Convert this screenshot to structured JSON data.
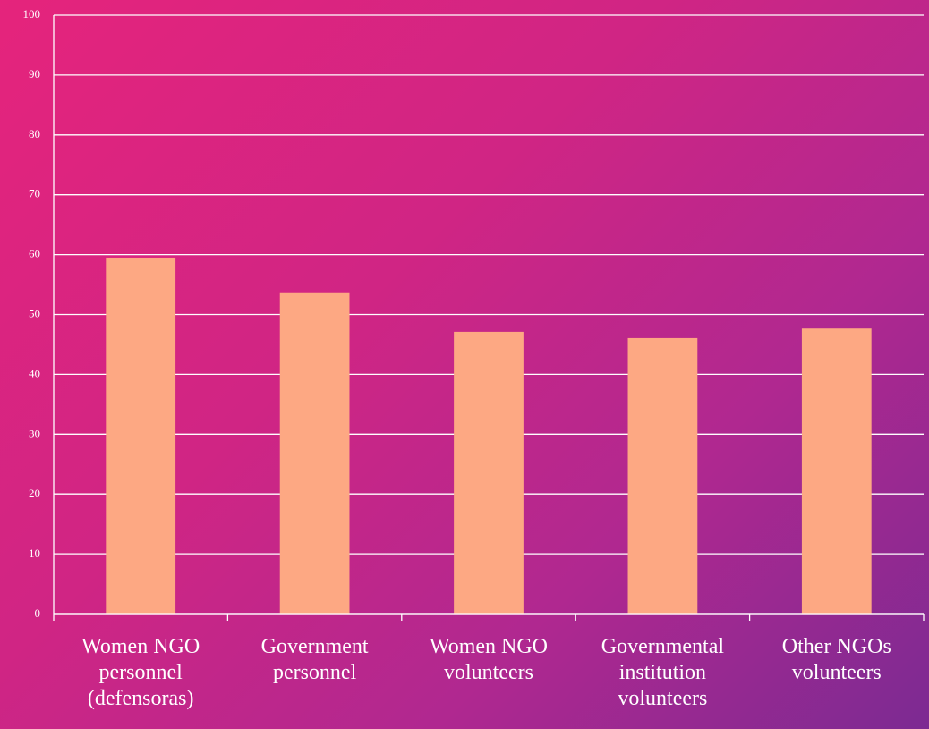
{
  "chart_data": {
    "type": "bar",
    "categories": [
      "Women NGO personnel (defensoras)",
      "Government personnel",
      "Women NGO volunteers",
      "Governmental institution volunteers",
      "Other NGOs volunteers"
    ],
    "values": [
      59.5,
      53.7,
      47.1,
      46.2,
      47.8
    ],
    "color": "#fda883",
    "ylim": [
      0,
      100
    ],
    "yticks": [
      0,
      10,
      20,
      30,
      40,
      50,
      60,
      70,
      80,
      90,
      100
    ],
    "grid": true
  }
}
